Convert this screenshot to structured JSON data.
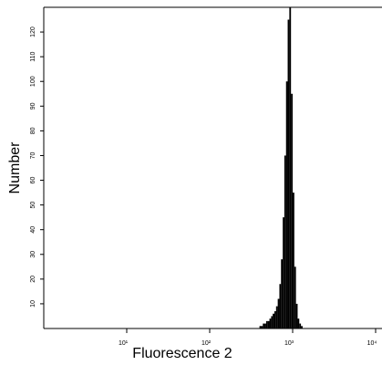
{
  "chart_data": {
    "type": "histogram",
    "x_label": "Fluorescence 2",
    "y_label": "Number",
    "xscale": "log",
    "color": "#000000",
    "bins": [
      398,
      417,
      437,
      457,
      479,
      501,
      525,
      550,
      575,
      603,
      631,
      661,
      692,
      724,
      759,
      794,
      832,
      871,
      912,
      955,
      1000,
      1047,
      1096,
      1148,
      1202,
      1259,
      1318
    ],
    "values": [
      1,
      1,
      2,
      2,
      3,
      3,
      4,
      5,
      6,
      7,
      9,
      12,
      18,
      28,
      45,
      70,
      100,
      125,
      130,
      95,
      55,
      25,
      10,
      4,
      2,
      1
    ],
    "xlim": [
      1,
      10000
    ],
    "xticks": [
      {
        "value": 10,
        "label": "10¹"
      },
      {
        "value": 100,
        "label": "10²"
      },
      {
        "value": 1000,
        "label": "10³"
      },
      {
        "value": 10000,
        "label": "10⁴"
      }
    ],
    "ylim": [
      0,
      130
    ],
    "yticks": [
      10,
      20,
      30,
      40,
      50,
      60,
      70,
      80,
      90,
      100,
      110,
      120
    ]
  }
}
